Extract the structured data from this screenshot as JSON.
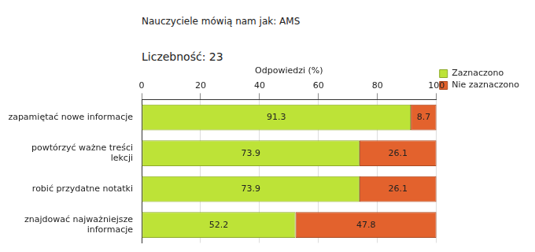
{
  "chart_data": {
    "type": "bar",
    "title": "Nauczyciele mówią nam jak: AMS",
    "subtitle": "Liczebność: 23",
    "x_label": "Odpowiedzi (%)",
    "categories": [
      "zapamiętać nowe informacje",
      "powtórzyć ważne treści lekcji",
      "robić przydatne notatki",
      "znajdować najważniejsze informacje"
    ],
    "series": [
      {
        "name": "Zaznaczono",
        "color": "#bde337",
        "values": [
          91.3,
          73.9,
          73.9,
          52.2
        ]
      },
      {
        "name": "Nie zaznaczono",
        "color": "#e3622d",
        "values": [
          8.7,
          26.1,
          26.1,
          47.8
        ]
      }
    ],
    "orientation": "horizontal",
    "stacked": true,
    "data_labels": true,
    "xlim": [
      0,
      100
    ],
    "xticks": [
      0,
      20,
      40,
      60,
      80,
      100
    ],
    "grid": true,
    "legend": "right"
  }
}
